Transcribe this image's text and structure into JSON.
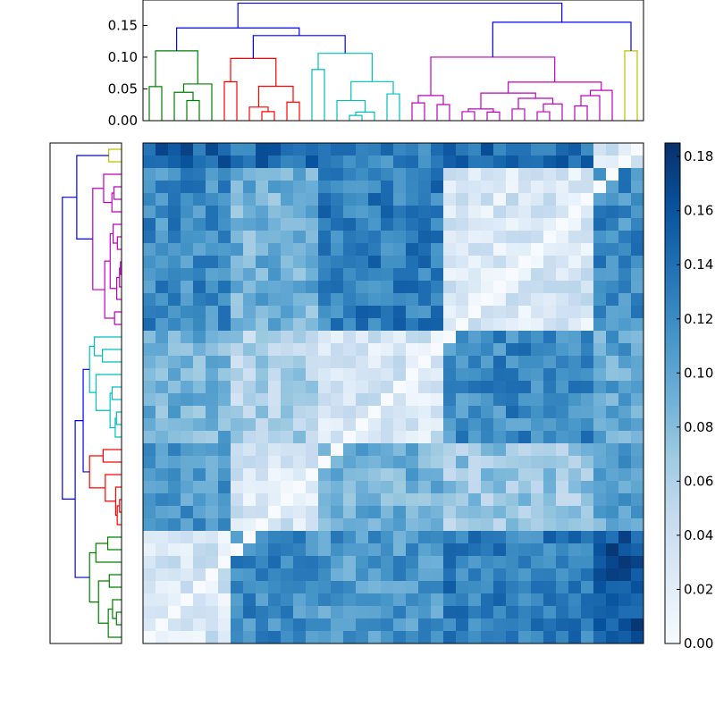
{
  "chart_data": [
    {
      "type": "dendrogram",
      "orientation": "top",
      "y_ticks": [
        "0.00",
        "0.05",
        "0.10",
        "0.15"
      ],
      "ylim": [
        0,
        0.19
      ],
      "leaf_count": 40,
      "clusters": [
        {
          "color": "#008000",
          "leaves": 6,
          "height": 0.11
        },
        {
          "color": "#ff0000",
          "leaves": 7,
          "height": 0.098
        },
        {
          "color": "#00bfbf",
          "leaves": 8,
          "height": 0.106
        },
        {
          "color": "#bf00bf",
          "leaves": 17,
          "height": 0.1
        },
        {
          "color": "#bfbf00",
          "leaves": 2,
          "height": 0.11
        }
      ],
      "link_color": "#0000ff",
      "root_height": 0.185
    },
    {
      "type": "dendrogram",
      "orientation": "left",
      "leaf_count": 40,
      "clusters": [
        {
          "color": "#bfbf00",
          "leaves": 2
        },
        {
          "color": "#bf00bf",
          "leaves": 13
        },
        {
          "color": "#00bfbf",
          "leaves": 9
        },
        {
          "color": "#ff0000",
          "leaves": 7
        },
        {
          "color": "#008000",
          "leaves": 9
        }
      ],
      "link_color": "#0000ff"
    },
    {
      "type": "heatmap",
      "rows": 40,
      "cols": 40,
      "colormap": "Blues",
      "vmin": 0,
      "vmax": 0.185,
      "block_rows": [
        2,
        15,
        24,
        31,
        40
      ],
      "block_cols": [
        7,
        14,
        24,
        36,
        40
      ],
      "blocks_values": [
        [
          0.15,
          0.14,
          0.13,
          0.14,
          0.03
        ],
        [
          0.12,
          0.09,
          0.13,
          0.03,
          0.12
        ],
        [
          0.09,
          0.06,
          0.03,
          0.12,
          0.1
        ],
        [
          0.11,
          0.03,
          0.09,
          0.07,
          0.1
        ],
        [
          0.03,
          0.12,
          0.11,
          0.13,
          0.16
        ]
      ],
      "colorbar_ticks": [
        "0.00",
        "0.02",
        "0.04",
        "0.06",
        "0.08",
        "0.10",
        "0.12",
        "0.14",
        "0.16",
        "0.18"
      ]
    }
  ]
}
